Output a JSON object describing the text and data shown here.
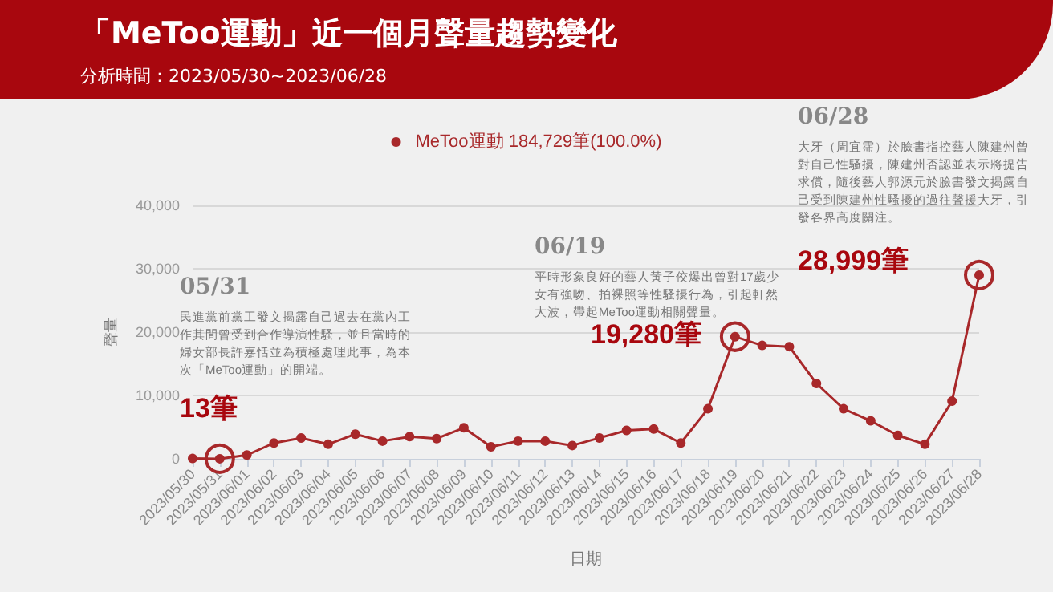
{
  "chart_data": {
    "type": "line",
    "title": "「MeToo運動」近一個月聲量趨勢變化",
    "subtitle": "分析時間：2023/05/30~2023/06/28",
    "xlabel": "日期",
    "ylabel": "聲量",
    "categories": [
      "2023/05/30",
      "2023/05/31",
      "2023/06/01",
      "2023/06/02",
      "2023/06/03",
      "2023/06/04",
      "2023/06/05",
      "2023/06/06",
      "2023/06/07",
      "2023/06/08",
      "2023/06/09",
      "2023/06/10",
      "2023/06/11",
      "2023/06/12",
      "2023/06/13",
      "2023/06/14",
      "2023/06/15",
      "2023/06/16",
      "2023/06/17",
      "2023/06/18",
      "2023/06/19",
      "2023/06/20",
      "2023/06/21",
      "2023/06/22",
      "2023/06/23",
      "2023/06/24",
      "2023/06/25",
      "2023/06/26",
      "2023/06/27",
      "2023/06/28"
    ],
    "series": [
      {
        "name": "MeToo運動 184,729筆(100.0%)",
        "color": "#a8282a",
        "values": [
          50,
          13,
          600,
          2500,
          3300,
          2300,
          3900,
          2800,
          3500,
          3200,
          4900,
          1900,
          2800,
          2800,
          2100,
          3300,
          4500,
          4700,
          2500,
          7900,
          19280,
          17900,
          17700,
          11900,
          7900,
          6000,
          3700,
          2300,
          9100,
          28999
        ]
      }
    ],
    "ylim": [
      0,
      40000
    ],
    "yticks": [
      0,
      {
        "value": 10000,
        "label": "10,000"
      },
      {
        "value": 20000,
        "label": "20,000"
      },
      {
        "value": 30000,
        "label": "30,000"
      },
      {
        "value": 40000,
        "label": "40,000"
      }
    ],
    "grid": "y",
    "legend": "top",
    "marker": "circle",
    "line_style": "solid",
    "annotations": [
      "05/31",
      "民進黨前黨工發文揭露自己過去在黨內工作其間曾受到合作導演性騷，並且當時的婦女部長許嘉恬並為積極處理此事，為本次「MeToo運動」的開端。",
      {
        "text": "13筆",
        "x": "2023/05/31",
        "y": 13
      },
      "06/19",
      "平時形象良好的藝人黃子佼爆出曾對17歲少女有強吻、拍裸照等性騷擾行為，引起軒然大波，帶起MeToo運動相關聲量。",
      {
        "text": "19,280筆",
        "x": "2023/06/19",
        "y": 19280
      },
      "06/28",
      "大牙（周宜霈）於臉書指控藝人陳建州曾對自己性騷擾，陳建州否認並表示將提告求償，隨後藝人郭源元於臉書發文揭露自己受到陳建州性騷擾的過往聲援大牙，引發各界高度關注。",
      {
        "text": "28,999筆",
        "x": "2023/06/28",
        "y": 28999
      }
    ]
  }
}
